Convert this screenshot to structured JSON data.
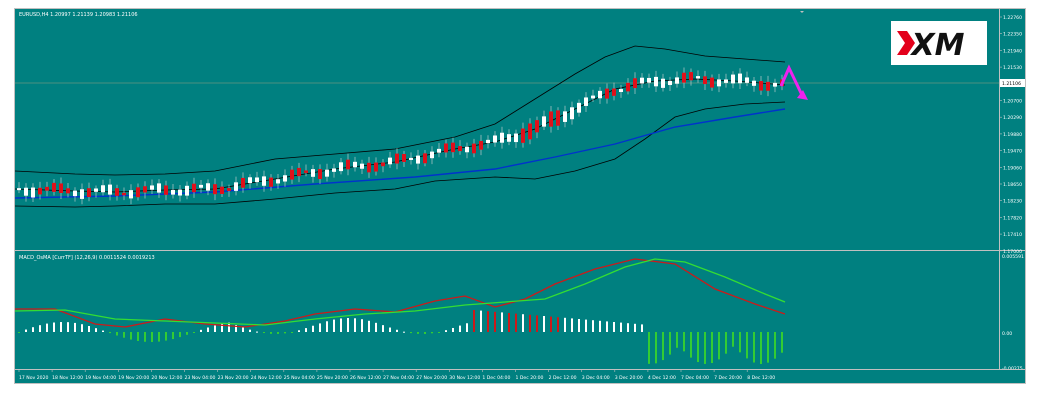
{
  "main_chart": {
    "header": "EURUSD,H4  1.20997 1.21139 1.20983 1.21106",
    "price_labels": [
      "1.22760",
      "1.22350",
      "1.21940",
      "1.21530",
      "1.21106",
      "1.20700",
      "1.20290",
      "1.19880",
      "1.19470",
      "1.19060",
      "1.18650",
      "1.18230",
      "1.17820",
      "1.17410",
      "1.17000"
    ],
    "current_price": "1.21106"
  },
  "macd_panel": {
    "header": "MACD_OsMA [CurrTF] (12,26,9) 0.0011524 0.0019213",
    "labels": [
      "0.005591",
      "0.00",
      "-0.00275"
    ]
  },
  "time_axis": {
    "labels": [
      "17 Nov 2020",
      "18 Nov 12:00",
      "19 Nov 04:00",
      "19 Nov 20:00",
      "20 Nov 12:00",
      "23 Nov 04:00",
      "23 Nov 20:00",
      "24 Nov 12:00",
      "25 Nov 04:00",
      "25 Nov 20:00",
      "26 Nov 12:00",
      "27 Nov 04:00",
      "27 Nov 20:00",
      "30 Nov 12:00",
      "1 Dec 04:00",
      "1 Dec 20:00",
      "2 Dec 12:00",
      "3 Dec 04:00",
      "3 Dec 20:00",
      "4 Dec 12:00",
      "7 Dec 04:00",
      "7 Dec 20:00",
      "8 Dec 12:00"
    ]
  },
  "logo": {
    "text": "XM"
  },
  "colors": {
    "background": "#008080",
    "bull_candle": "#ffffff",
    "bear_candle": "#e0101a",
    "bands": "#000000",
    "moving_average": "#0033cc",
    "macd_line": "#cc1a1a",
    "signal_line": "#33dd33",
    "histogram_up": "#ffffff",
    "histogram_down": "#33cc33",
    "histogram_peak": "#cc1a1a",
    "arrow": "#ee22ee"
  },
  "icons": [
    "forecast-arrow-icon",
    "xm-logo-icon",
    "collapse-triangle-icon"
  ]
}
